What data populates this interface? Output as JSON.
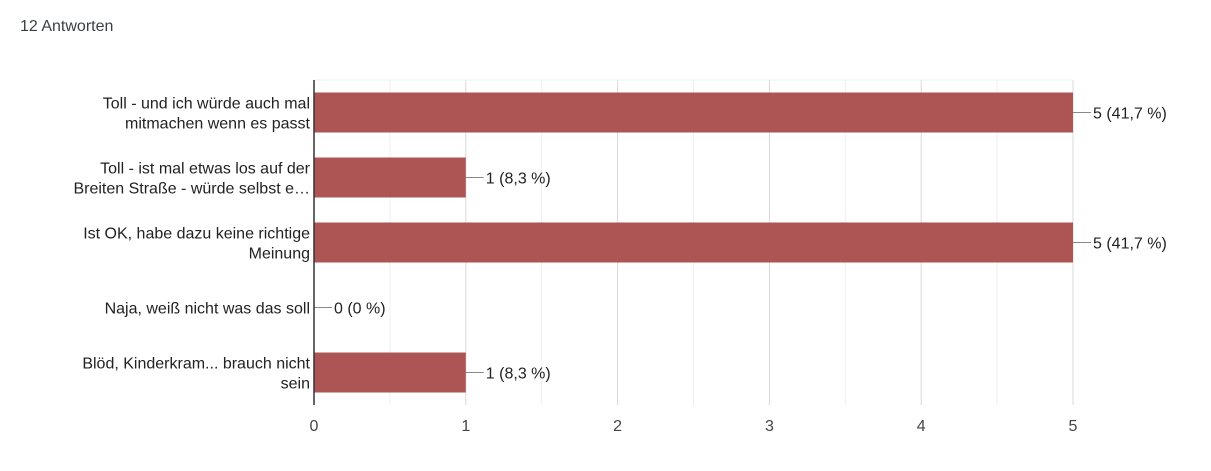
{
  "response_count": "12 Antworten",
  "chart_data": {
    "type": "bar",
    "orientation": "horizontal",
    "categories": [
      [
        "Toll - und ich würde auch mal",
        "mitmachen wenn es passt"
      ],
      [
        "Toll - ist mal etwas los auf der",
        "Breiten Straße - würde selbst e…"
      ],
      [
        "Ist OK, habe dazu keine richtige",
        "Meinung"
      ],
      [
        "Naja, weiß nicht was das soll"
      ],
      [
        "Blöd, Kinderkram... brauch nicht",
        "sein"
      ]
    ],
    "values": [
      5,
      1,
      5,
      0,
      1
    ],
    "data_labels": [
      "5 (41,7 %)",
      "1 (8,3 %)",
      "5 (41,7 %)",
      "0 (0 %)",
      "1 (8,3 %)"
    ],
    "xlim": [
      0,
      5
    ],
    "xticks": [
      0,
      1,
      2,
      3,
      4,
      5
    ],
    "grid": true,
    "bar_color": "#ad5555"
  }
}
